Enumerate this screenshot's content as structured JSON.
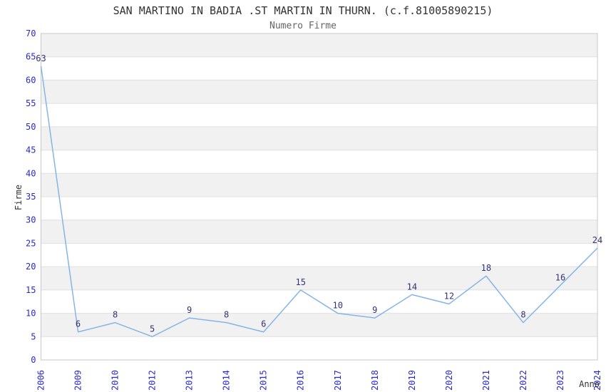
{
  "chart_data": {
    "type": "line",
    "title": "SAN MARTINO IN BADIA .ST MARTIN IN THURN. (c.f.81005890215)",
    "subtitle": "Numero Firme",
    "xlabel": "Anno",
    "ylabel": "Firme",
    "categories": [
      "2006",
      "2009",
      "2010",
      "2012",
      "2013",
      "2014",
      "2015",
      "2016",
      "2017",
      "2018",
      "2019",
      "2020",
      "2021",
      "2022",
      "2023",
      "2024"
    ],
    "values": [
      63,
      6,
      8,
      5,
      9,
      8,
      6,
      15,
      10,
      9,
      14,
      12,
      18,
      8,
      16,
      24
    ],
    "point_labels": [
      "63",
      "6",
      "8",
      "5",
      "9",
      "8",
      "6",
      "15",
      "10",
      "9",
      "14",
      "12",
      "18",
      "8",
      "16",
      "24"
    ],
    "ylim": [
      0,
      70
    ],
    "ytick_step": 5,
    "yticks": [
      0,
      5,
      10,
      15,
      20,
      25,
      30,
      35,
      40,
      45,
      50,
      55,
      60,
      65,
      70
    ],
    "grid": true,
    "legend": false,
    "band_fill": "alternating horizontal stripes every 5 units"
  },
  "style": {
    "title_color": "#333333",
    "subtitle_color": "#666666",
    "axis_title_color": "#333333",
    "tick_label_color": "#2a2ac8",
    "point_label_color": "#333377",
    "line_color": "#85b5e7",
    "band_color": "#f1f1f1",
    "gridline_color": "#e0e0e0",
    "border_color": "#c9c9c9",
    "background_color": "#ffffff"
  }
}
